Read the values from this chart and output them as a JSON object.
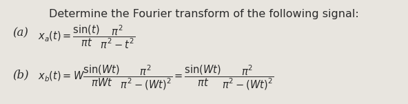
{
  "title": "Determine the Fourier transform of the following signal:",
  "label_a": "(a)",
  "label_b": "(b)",
  "eq_a": "$x_a(t) = \\dfrac{\\sin(t)}{\\pi t} \\dfrac{\\pi^2}{\\pi^2 - t^2}$",
  "eq_b": "$x_b(t) = W\\dfrac{\\sin(Wt)}{\\pi Wt} \\dfrac{\\pi^2}{\\pi^2-(Wt)^2} = \\dfrac{\\sin(Wt)}{\\pi t} \\dfrac{\\pi^2}{\\pi^2-(Wt)^2}$",
  "bg_color": "#e8e5df",
  "text_color": "#2a2a2a",
  "title_fontsize": 11.5,
  "label_fontsize": 12,
  "eq_fontsize": 10.5,
  "figsize": [
    5.92,
    1.51
  ],
  "dpi": 100
}
